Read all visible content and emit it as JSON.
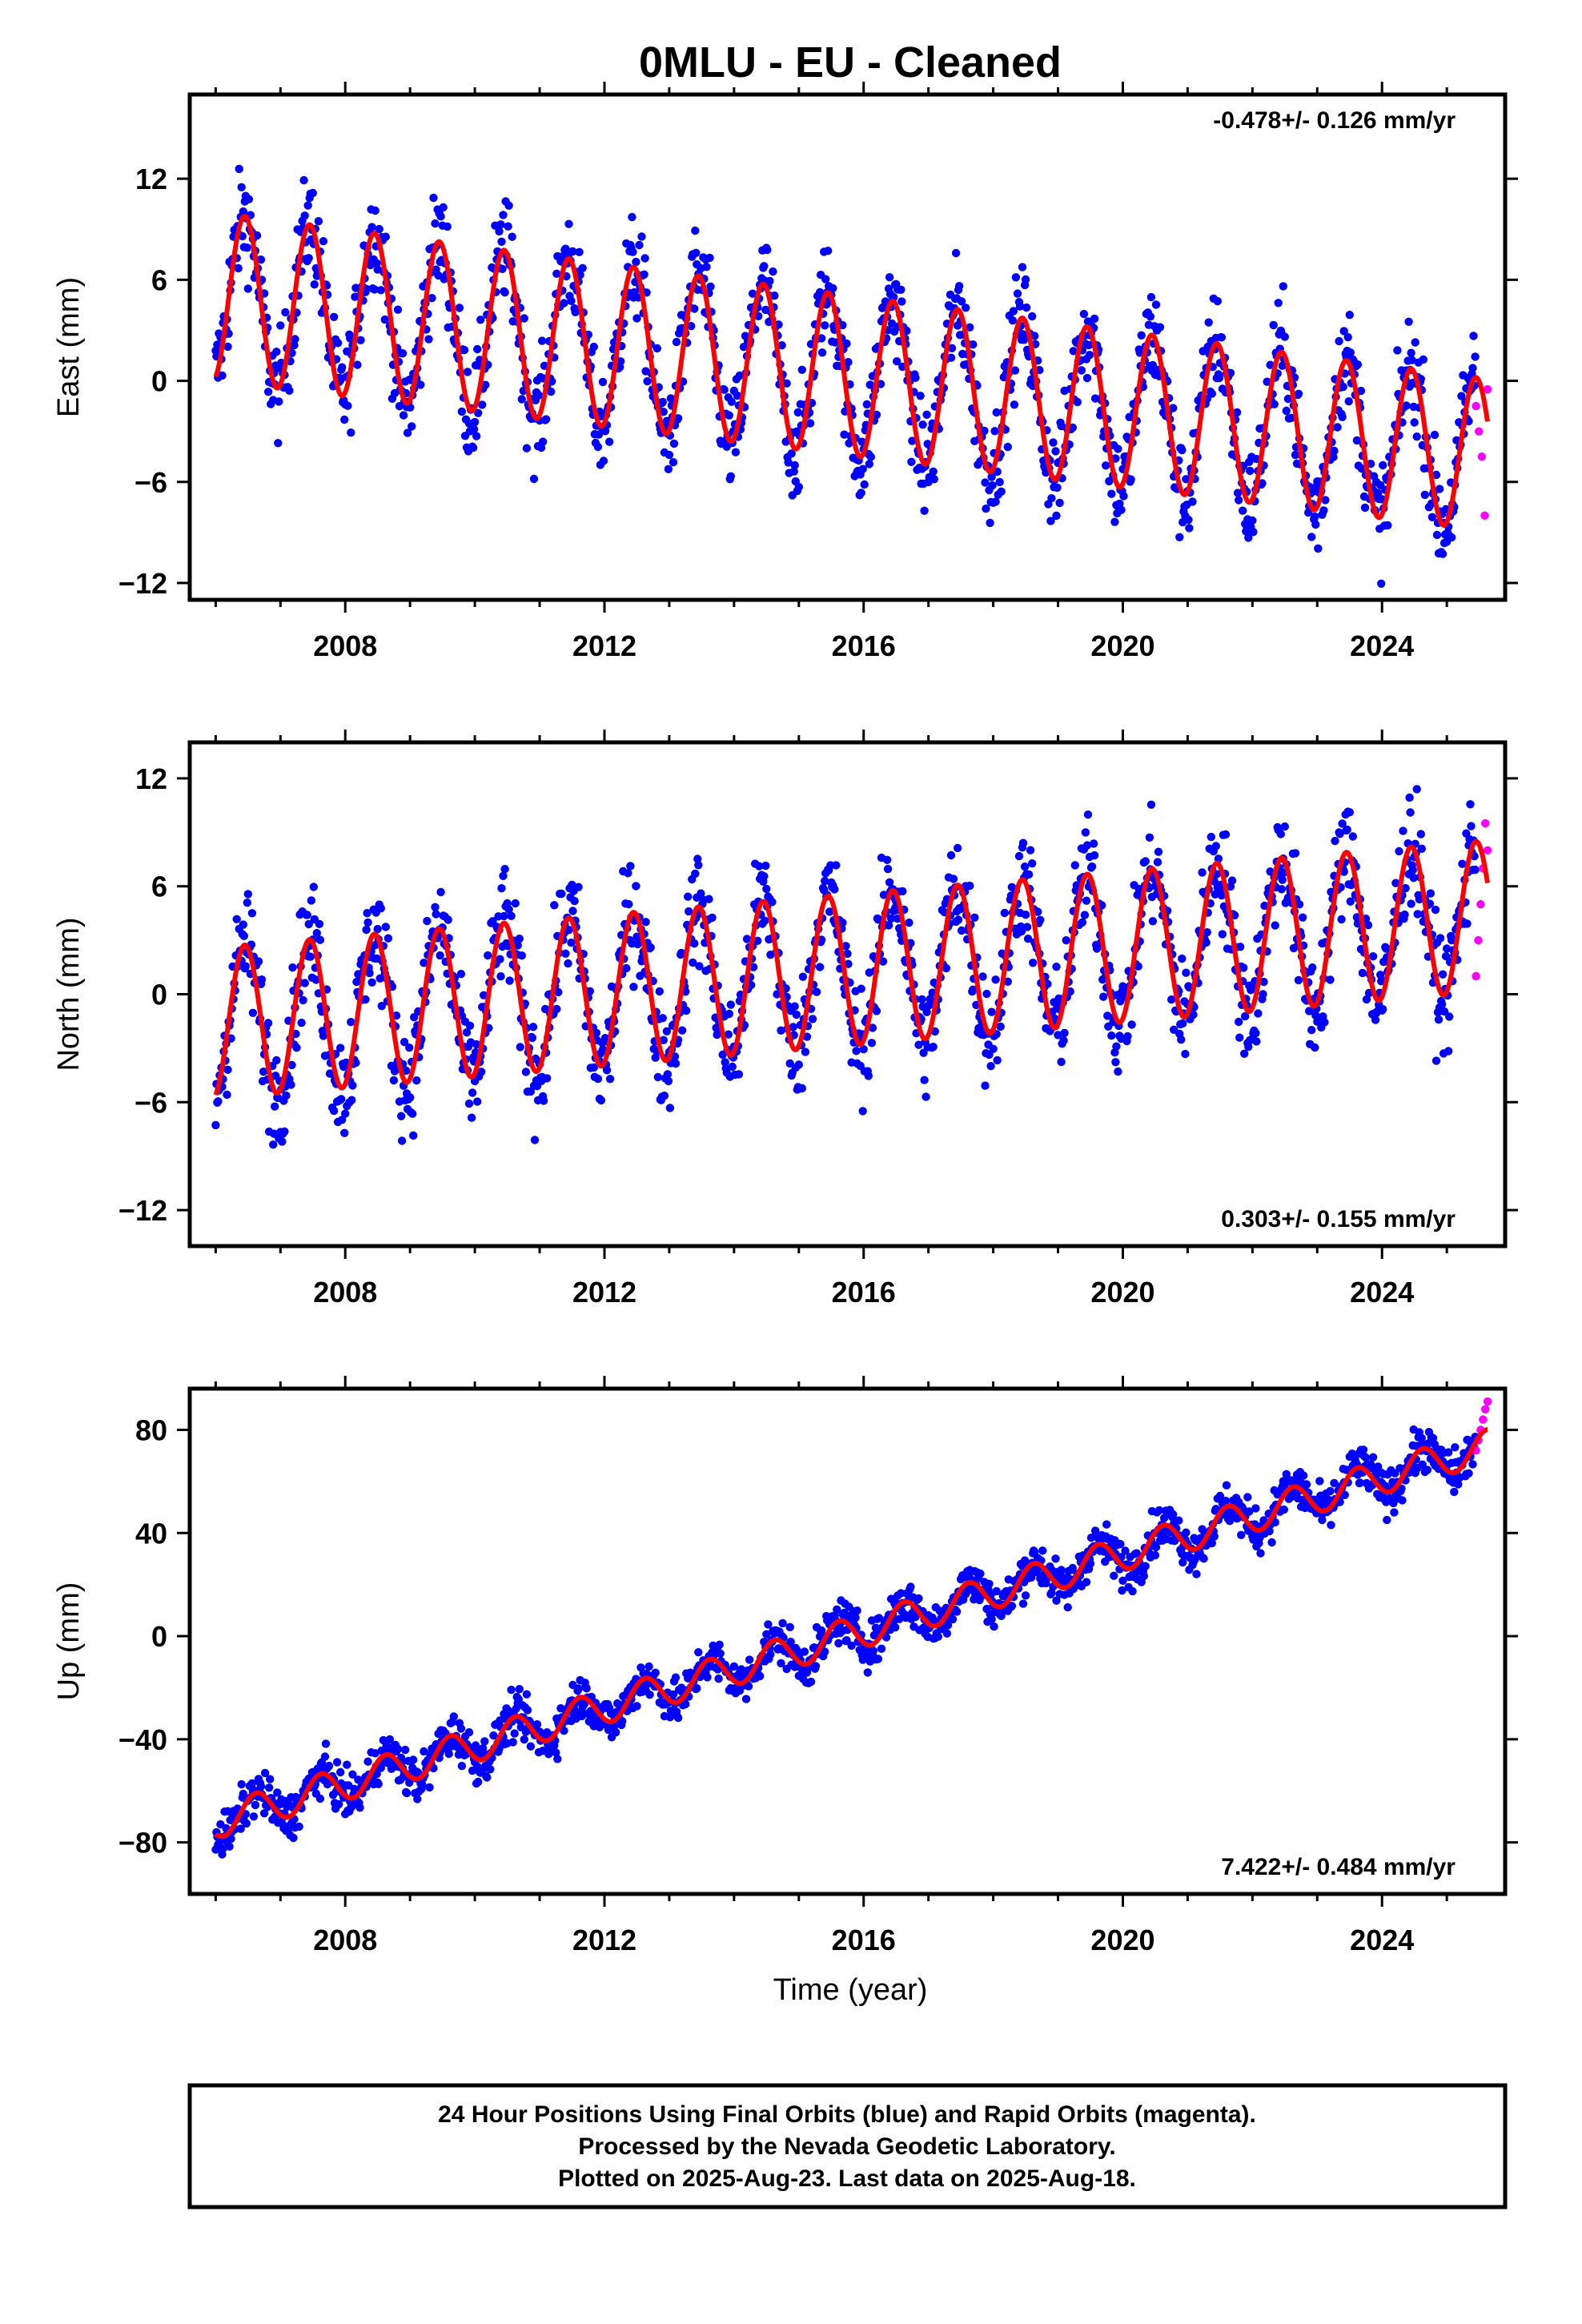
{
  "title": "0MLU  - EU - Cleaned",
  "colors": {
    "final_orbits": "#0000ff",
    "rapid_orbits": "#ff00ff",
    "model_fit": "#ff0000",
    "frame": "#000000"
  },
  "x_axis": {
    "label": "Time (year)",
    "range": [
      2005.6,
      2025.9
    ],
    "major_ticks": [
      2008,
      2012,
      2016,
      2020,
      2024
    ],
    "tick_labels": [
      "2008",
      "2012",
      "2016",
      "2020",
      "2024"
    ]
  },
  "footer": {
    "line1": "24 Hour Positions Using Final Orbits (blue) and Rapid Orbits (magenta).",
    "line2": "Processed by the Nevada Geodetic Laboratory.",
    "line3": "Plotted on 2025-Aug-23. Last data on 2025-Aug-18."
  },
  "chart_data": [
    {
      "type": "scatter",
      "component": "East",
      "ylabel": "East (mm)",
      "ylim": [
        -13,
        17
      ],
      "yticks": [
        -12,
        -6,
        0,
        6,
        12
      ],
      "ytick_labels": [
        "−12",
        "−6",
        "0",
        "6",
        "12"
      ],
      "rate_text": "-0.478+/- 0.126 mm/yr",
      "rate_position": "top-right",
      "x_start": 2006.0,
      "x_end_final": 2025.45,
      "x_end_rapid": 2025.63,
      "model": {
        "trend_mm_per_yr": -0.478,
        "value_at_2006": 5.0,
        "amp_start": 5.0,
        "amp_end": 4.5,
        "phase_peak": 0.45
      },
      "scatter_spread_mm": 2.2,
      "rapid_values": [
        -1.5,
        -3.0,
        -4.5,
        -8.0,
        -0.5
      ]
    },
    {
      "type": "scatter",
      "component": "North",
      "ylabel": "North (mm)",
      "ylim": [
        -14,
        14
      ],
      "yticks": [
        -12,
        -6,
        0,
        6,
        12
      ],
      "ytick_labels": [
        "−12",
        "−6",
        "0",
        "6",
        "12"
      ],
      "rate_text": "0.303+/- 0.155 mm/yr",
      "rate_position": "bottom-right",
      "x_start": 2006.0,
      "x_end_final": 2025.45,
      "x_end_rapid": 2025.63,
      "model": {
        "trend_mm_per_yr": 0.303,
        "value_at_2006": -1.6,
        "amp_start": 4.2,
        "amp_end": 4.2,
        "phase_peak": 0.45
      },
      "scatter_spread_mm": 2.2,
      "rapid_values": [
        1.0,
        3.0,
        5.0,
        7.0,
        9.5,
        8.0
      ]
    },
    {
      "type": "scatter",
      "component": "Up",
      "ylabel": "Up (mm)",
      "ylim": [
        -100,
        96
      ],
      "yticks": [
        -80,
        -40,
        0,
        40,
        80
      ],
      "ytick_labels": [
        "−80",
        "−40",
        "0",
        "40",
        "80"
      ],
      "rate_text": "7.422+/- 0.484 mm/yr",
      "rate_position": "bottom-right",
      "x_start": 2006.0,
      "x_end_final": 2025.45,
      "x_end_rapid": 2025.63,
      "model": {
        "trend_mm_per_yr": 7.422,
        "value_at_2006": -72.0,
        "amp_start": 6.5,
        "amp_end": 6.5,
        "phase_peak": 0.62
      },
      "scatter_spread_mm": 6.0,
      "rapid_values": [
        72,
        76,
        80,
        84,
        88,
        91
      ]
    }
  ]
}
